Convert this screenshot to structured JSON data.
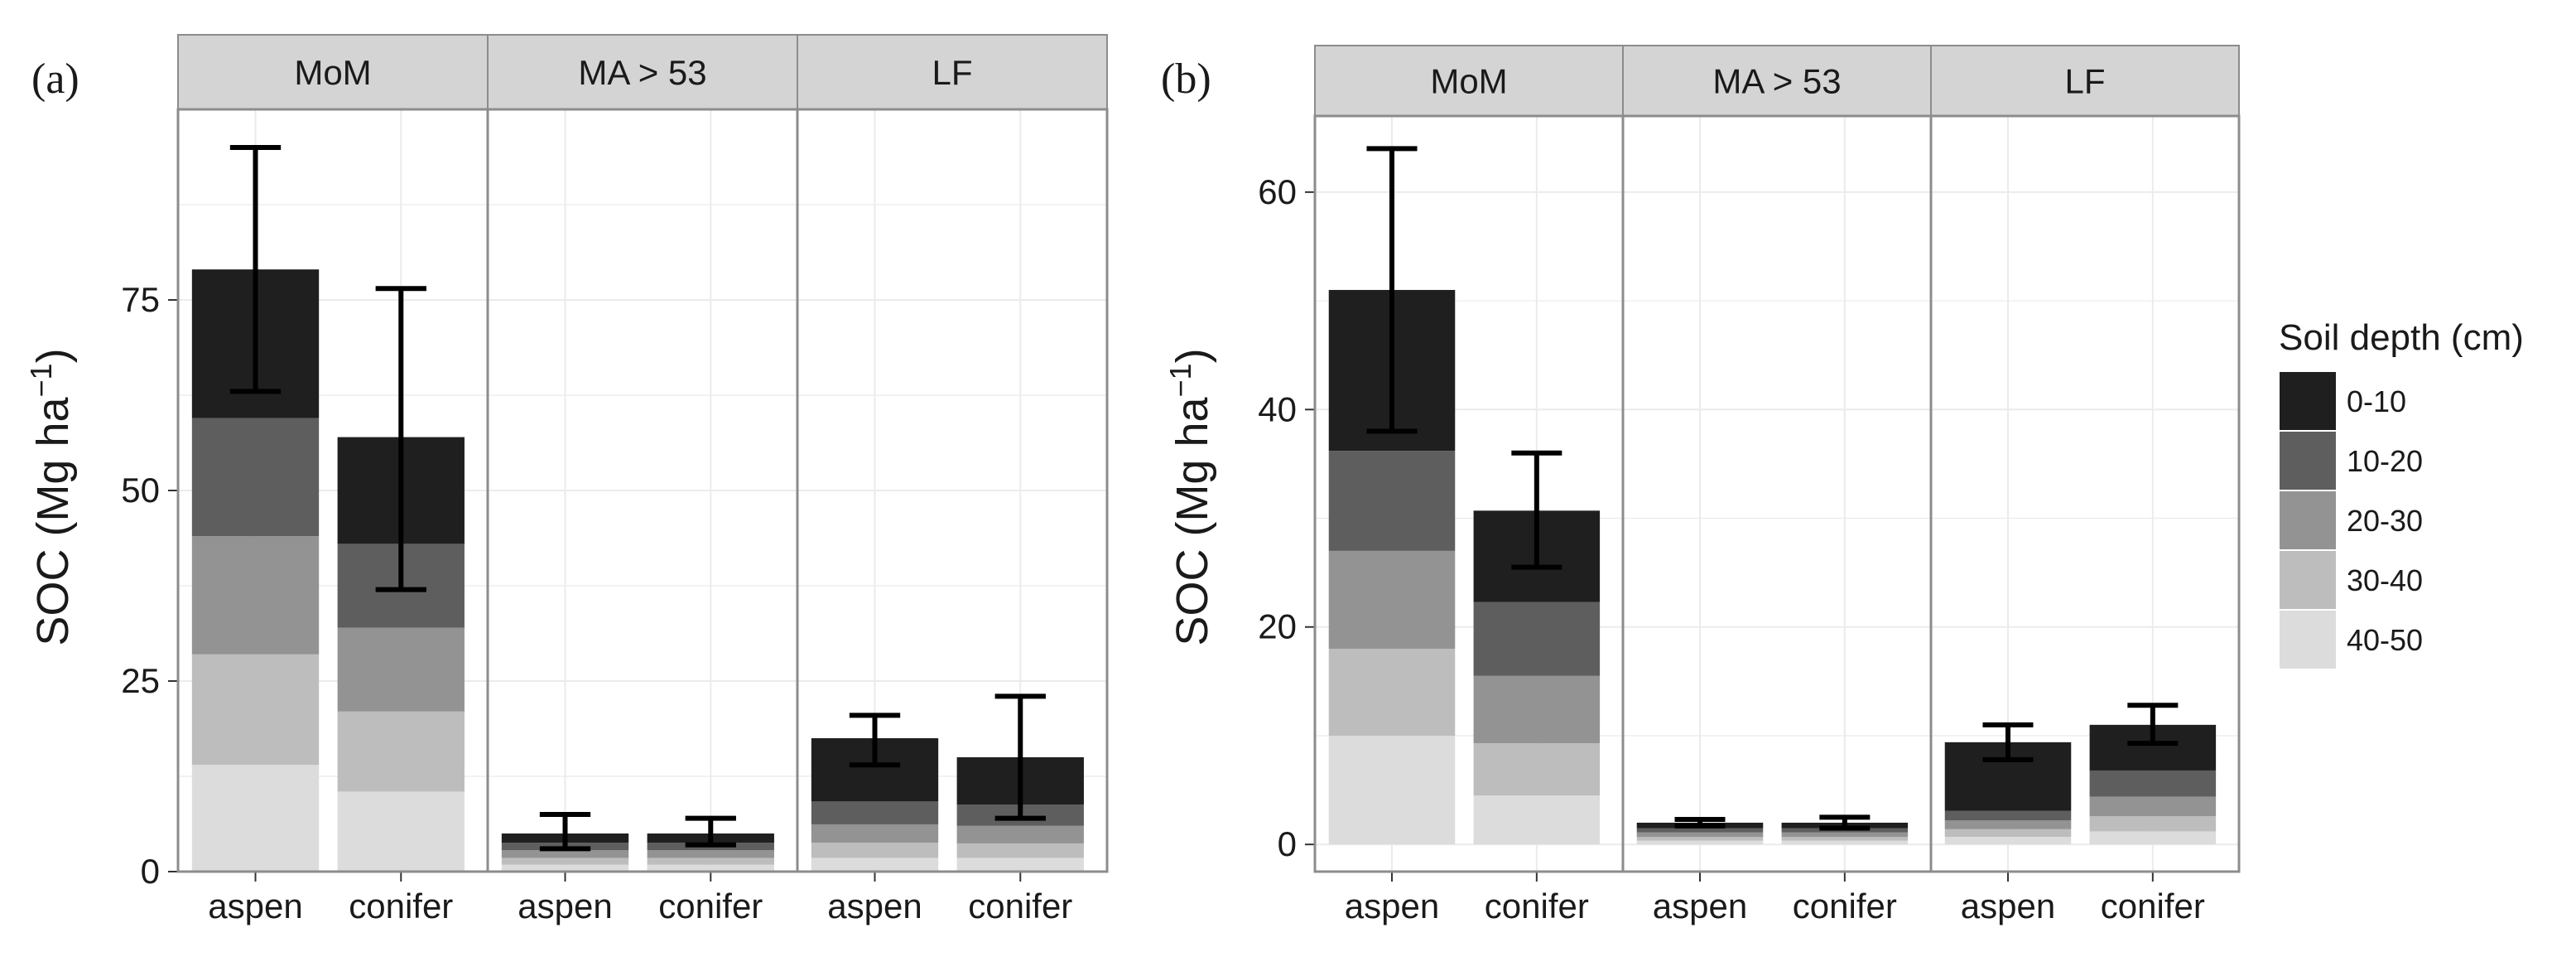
{
  "chart_data": [
    {
      "type": "bar",
      "stacked": true,
      "panel_label": "(a)",
      "ylabel": "SOC",
      "ylabel_unit": "Mg ha",
      "ylabel_exponent": "−1",
      "ylim": [
        0,
        100
      ],
      "yticks": [
        0,
        25,
        50,
        75
      ],
      "grid": true,
      "facets": [
        "MoM",
        "MA > 53",
        "LF"
      ],
      "categories": [
        "aspen",
        "conifer"
      ],
      "series_order": [
        "40-50",
        "30-40",
        "20-30",
        "10-20",
        "0-10"
      ],
      "data": {
        "MoM": {
          "aspen": {
            "layers": [
              14,
              14.5,
              15.5,
              15.5,
              19.5
            ],
            "total": 79,
            "err": [
              63,
              95
            ]
          },
          "conifer": {
            "layers": [
              10.5,
              10.5,
              11,
              11,
              14
            ],
            "total": 57,
            "err": [
              37,
              76.5
            ]
          }
        },
        "MA > 53": {
          "aspen": {
            "layers": [
              0.9,
              0.9,
              1.0,
              1.0,
              1.2
            ],
            "total": 5,
            "err": [
              3,
              7.5
            ]
          },
          "conifer": {
            "layers": [
              0.9,
              0.9,
              1.0,
              1.0,
              1.2
            ],
            "total": 5,
            "err": [
              3.5,
              7
            ]
          }
        },
        "LF": {
          "aspen": {
            "layers": [
              1.8,
              2,
              2.4,
              3,
              8.3
            ],
            "total": 17.5,
            "err": [
              14,
              20.5
            ]
          },
          "conifer": {
            "layers": [
              1.8,
              1.9,
              2.3,
              2.8,
              6.2
            ],
            "total": 15,
            "err": [
              7,
              23
            ]
          }
        }
      }
    },
    {
      "type": "bar",
      "stacked": true,
      "panel_label": "(b)",
      "ylabel": "SOC",
      "ylabel_unit": "Mg ha",
      "ylabel_exponent": "−1",
      "ylim": [
        -2.5,
        67
      ],
      "yticks": [
        0,
        20,
        40,
        60
      ],
      "grid": true,
      "facets": [
        "MoM",
        "MA > 53",
        "LF"
      ],
      "categories": [
        "aspen",
        "conifer"
      ],
      "series_order": [
        "40-50",
        "30-40",
        "20-30",
        "10-20",
        "0-10"
      ],
      "data": {
        "MoM": {
          "aspen": {
            "layers": [
              10,
              8,
              9,
              9.2,
              14.8
            ],
            "total": 51,
            "err": [
              38,
              64
            ]
          },
          "conifer": {
            "layers": [
              4.5,
              4.8,
              6.2,
              6.8,
              8.4
            ],
            "total": 30.7,
            "err": [
              25.5,
              36
            ]
          }
        },
        "MA > 53": {
          "aspen": {
            "layers": [
              0.35,
              0.35,
              0.4,
              0.4,
              0.5
            ],
            "total": 2,
            "err": [
              1.7,
              2.3
            ]
          },
          "conifer": {
            "layers": [
              0.35,
              0.35,
              0.4,
              0.4,
              0.5
            ],
            "total": 2,
            "err": [
              1.5,
              2.5
            ]
          }
        },
        "LF": {
          "aspen": {
            "layers": [
              0.7,
              0.7,
              0.8,
              0.9,
              6.3
            ],
            "total": 9.4,
            "err": [
              7.8,
              11
            ]
          },
          "conifer": {
            "layers": [
              1.2,
              1.4,
              1.8,
              2.4,
              4.2
            ],
            "total": 11,
            "err": [
              9.3,
              12.8
            ]
          }
        }
      }
    }
  ],
  "legend": {
    "title": "Soil depth (cm)",
    "items": [
      {
        "label": "0-10",
        "color": "#1f1f1f"
      },
      {
        "label": "10-20",
        "color": "#5e5e5e"
      },
      {
        "label": "20-30",
        "color": "#939393"
      },
      {
        "label": "30-40",
        "color": "#bdbdbd"
      },
      {
        "label": "40-50",
        "color": "#dcdcdc"
      }
    ]
  },
  "colors": {
    "strip_bg": "#d4d4d4",
    "grid": "#ebebeb",
    "panel_border": "#8c8c8c",
    "error_bar": "#000000"
  }
}
